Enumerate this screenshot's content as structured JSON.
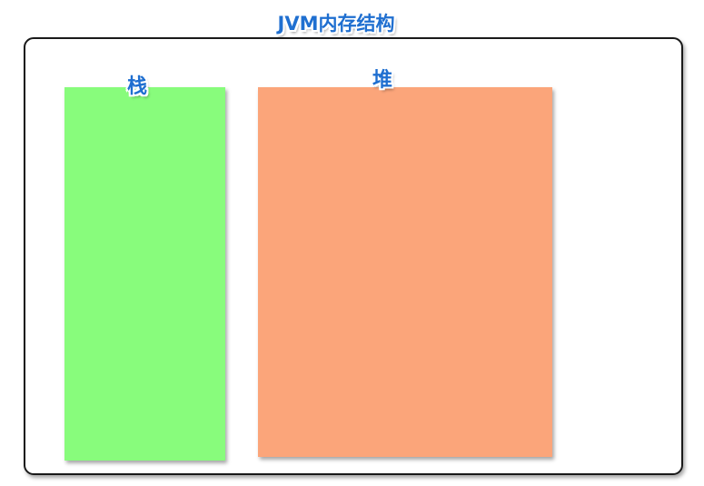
{
  "diagram": {
    "title": "JVM内存结构",
    "regions": [
      {
        "id": "stack",
        "label": "栈",
        "color": "#88fc7c"
      },
      {
        "id": "heap",
        "label": "堆",
        "color": "#fba57a"
      }
    ],
    "frame_border_color": "#1a1a1a",
    "label_color": "#1f6fd0"
  }
}
